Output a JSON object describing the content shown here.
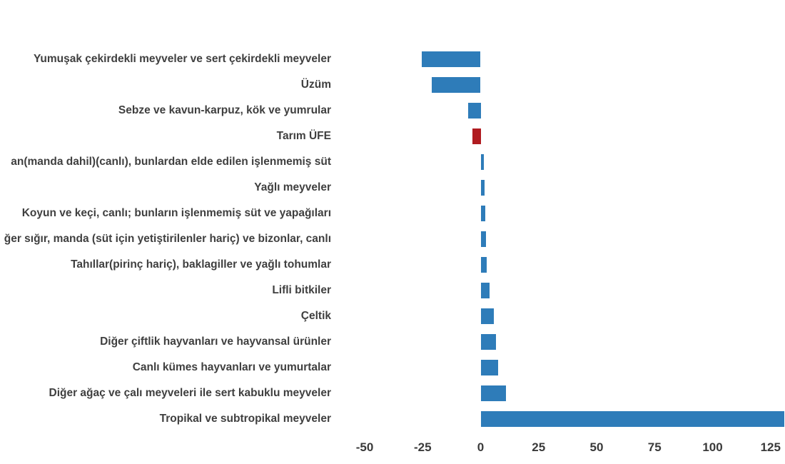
{
  "chart_data": {
    "type": "bar",
    "orientation": "horizontal",
    "title": "",
    "xlabel": "",
    "ylabel": "",
    "grid": false,
    "legend": null,
    "xticks": [
      -50,
      -25,
      0,
      25,
      50,
      75,
      100,
      125
    ],
    "xlim": [
      -57,
      131.5
    ],
    "bar_color": "#2e7cb9",
    "highlight_color": "#b01b20",
    "text_color": "#3f3f3f",
    "highlight_category": "Tarım ÜFE",
    "categories": [
      "Yumuşak çekirdekli meyveler ve sert çekirdekli meyveler",
      "Üzüm",
      "Sebze ve kavun-karpuz, kök ve yumrular",
      "Tarım ÜFE",
      "an(manda dahil)(canlı), bunlardan elde edilen işlenmemiş süt",
      "Yağlı meyveler",
      "Koyun ve keçi, canlı; bunların işlenmemiş süt ve yapağıları",
      "ğer sığır, manda (süt için yetiştirilenler hariç) ve bizonlar, canlı",
      "Tahıllar(pirinç hariç), baklagiller ve yağlı tohumlar",
      "Lifli bitkiler",
      "Çeltik",
      "Diğer çiftlik hayvanları ve hayvansal ürünler",
      "Canlı kümes hayvanları ve yumurtalar",
      "Diğer ağaç ve çalı meyveleri ile sert kabuklu meyveler",
      "Tropikal ve subtropikal meyveler"
    ],
    "values": [
      -25.3,
      -21.2,
      -5.5,
      -3.5,
      1.3,
      1.8,
      1.9,
      2.2,
      2.7,
      3.9,
      5.8,
      6.5,
      7.5,
      11.0,
      131.0
    ]
  }
}
